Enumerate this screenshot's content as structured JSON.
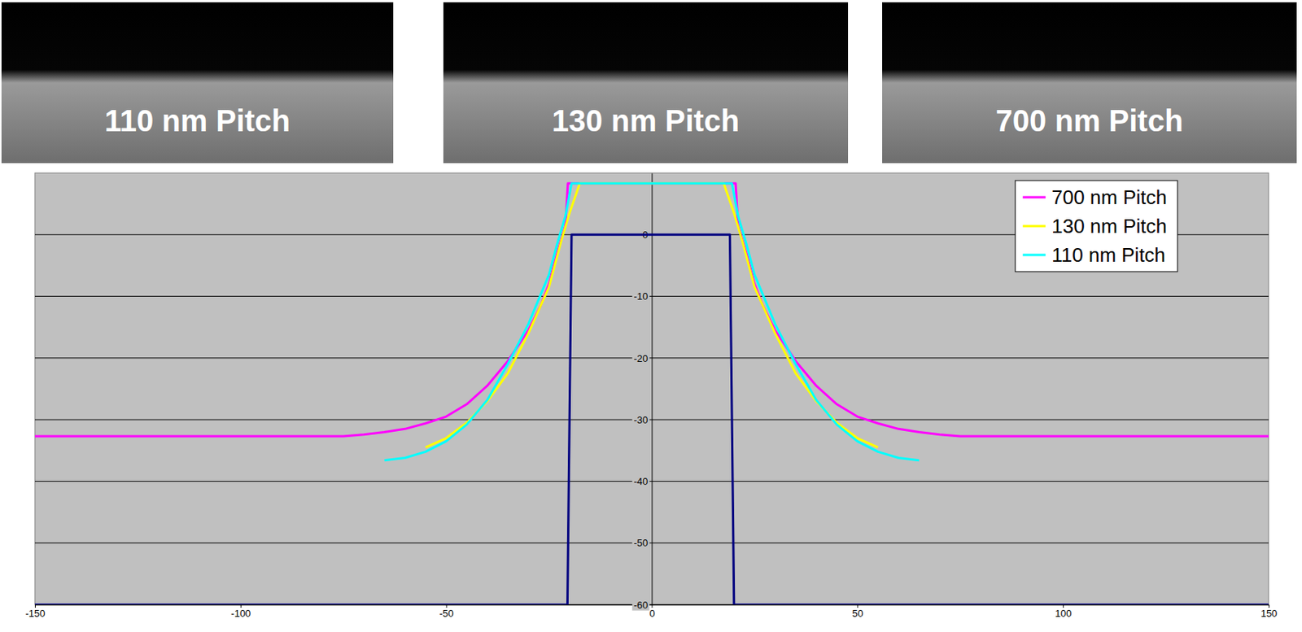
{
  "chart_data": {
    "type": "line",
    "annotations": [
      "110 nm Pitch",
      "130 nm Pitch",
      "700 nm Pitch"
    ],
    "xlim": [
      -150,
      150
    ],
    "xticks": [
      -150,
      -100,
      -50,
      0,
      50,
      100,
      150
    ],
    "ylim": [
      -60,
      10
    ],
    "yticks": [
      -60,
      -50,
      -40,
      -30,
      -20,
      -10,
      0
    ],
    "grid": true,
    "legend": "top-right",
    "series": [
      {
        "name": "700 nm Pitch",
        "color": "#ff00ff",
        "x": [
          -150,
          -75,
          -70,
          -65,
          -60,
          -55,
          -50,
          -45,
          -40,
          -35,
          -30,
          -27,
          -25,
          -23,
          -21,
          -20.4,
          20.4,
          21,
          23,
          25,
          27,
          30,
          35,
          40,
          45,
          50,
          55,
          60,
          65,
          70,
          75,
          150
        ],
        "values": [
          -32.7,
          -32.7,
          -32.4,
          -32,
          -31.5,
          -30.6,
          -29.5,
          -27.5,
          -24.5,
          -20.5,
          -15.5,
          -11.5,
          -8,
          -3,
          1.5,
          8.3,
          8.3,
          1.5,
          -3,
          -8,
          -11.5,
          -15.5,
          -20.5,
          -24.5,
          -27.5,
          -29.5,
          -30.6,
          -31.5,
          -32,
          -32.4,
          -32.7,
          -32.7
        ]
      },
      {
        "name": "130 nm Pitch",
        "color": "#ffff00",
        "x": [
          -55,
          -50,
          -45,
          -40,
          -35,
          -30,
          -25,
          -22,
          -20,
          -17.5,
          17.5,
          20,
          22,
          25,
          30,
          35,
          40,
          45,
          50,
          55
        ],
        "values": [
          -34.5,
          -33,
          -30.5,
          -27,
          -22.5,
          -16,
          -8.5,
          -1,
          3.5,
          8.3,
          8.3,
          3.5,
          -1,
          -8.5,
          -16,
          -22.5,
          -27,
          -30.5,
          -33,
          -34.5
        ]
      },
      {
        "name": "110 nm Pitch",
        "color": "#00ffff",
        "x": [
          -65,
          -60,
          -55,
          -50,
          -45,
          -40,
          -35,
          -30,
          -25,
          -23,
          -21,
          -19.5,
          19.5,
          21,
          23,
          25,
          30,
          35,
          40,
          45,
          50,
          55,
          60,
          65
        ],
        "values": [
          -36.6,
          -36.2,
          -35.2,
          -33.5,
          -30.8,
          -26.8,
          -21,
          -14.5,
          -6.5,
          -1.5,
          3,
          8.3,
          8.3,
          3,
          -1.5,
          -6.5,
          -14.5,
          -21,
          -26.8,
          -30.8,
          -33.5,
          -35.2,
          -36.2,
          -36.6
        ]
      },
      {
        "color": "#000080",
        "x": [
          -150,
          -20.5,
          -19.5,
          19,
          20,
          150
        ],
        "values": [
          -60,
          -60,
          0,
          0,
          -60,
          -60
        ]
      }
    ]
  }
}
